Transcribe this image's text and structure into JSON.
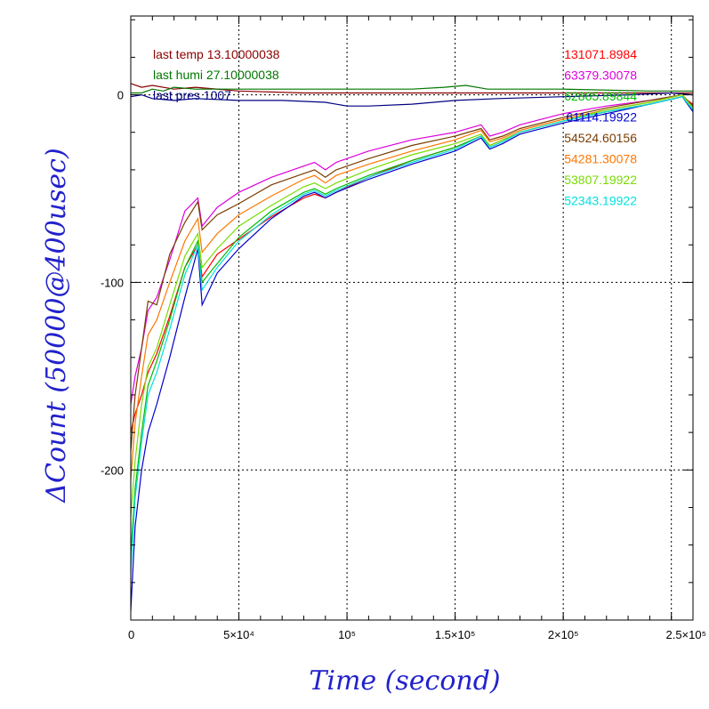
{
  "chart_data": {
    "type": "line",
    "xlabel": "Time (second)",
    "ylabel": "ΔCount (50000@400usec)",
    "xlim": [
      0,
      260000
    ],
    "ylim": [
      -280,
      42
    ],
    "x_ticks": [
      {
        "value": 0,
        "label": "0"
      },
      {
        "value": 50000,
        "label": "5×10⁴"
      },
      {
        "value": 100000,
        "label": "10⁵"
      },
      {
        "value": 150000,
        "label": "1.5×10⁵"
      },
      {
        "value": 200000,
        "label": "2×10⁵"
      },
      {
        "value": 250000,
        "label": "2.5×10⁵"
      }
    ],
    "y_ticks": [
      {
        "value": 0,
        "label": "0"
      },
      {
        "value": -100,
        "label": "-100"
      },
      {
        "value": -200,
        "label": "-200"
      }
    ],
    "grid": true,
    "env_labels": [
      {
        "text": "last temp 13.10000038",
        "color": "#8b0000"
      },
      {
        "text": "last humi 27.10000038",
        "color": "#007700"
      },
      {
        "text": "last pres 1007",
        "color": "#000080"
      }
    ],
    "legend_position": "top-right",
    "series": [
      {
        "name": "131071.8984",
        "color": "#ff0000",
        "x": [
          0,
          2000,
          5000,
          8000,
          12000,
          18000,
          25000,
          31000,
          33000,
          40000,
          50000,
          65000,
          80000,
          85000,
          90000,
          95000,
          110000,
          130000,
          150000,
          162000,
          166000,
          172000,
          180000,
          200000,
          220000,
          240000,
          255000,
          260000
        ],
        "values": [
          -180,
          -170,
          -160,
          -148,
          -138,
          -118,
          -92,
          -80,
          -97,
          -85,
          -77,
          -65,
          -55,
          -53,
          -55,
          -52,
          -44,
          -35,
          -28,
          -22,
          -27,
          -24,
          -20,
          -14,
          -9,
          -5,
          -1,
          -5
        ]
      },
      {
        "name": "63379.30078",
        "color": "#dd00dd",
        "x": [
          0,
          2000,
          5000,
          8000,
          12000,
          18000,
          25000,
          31000,
          33000,
          40000,
          50000,
          65000,
          80000,
          85000,
          90000,
          95000,
          110000,
          130000,
          150000,
          162000,
          166000,
          172000,
          180000,
          200000,
          220000,
          240000,
          255000,
          260000
        ],
        "values": [
          -165,
          -150,
          -135,
          -115,
          -108,
          -88,
          -62,
          -55,
          -70,
          -60,
          -52,
          -44,
          -38,
          -36,
          -40,
          -36,
          -30,
          -24,
          -20,
          -16,
          -22,
          -20,
          -16,
          -10,
          -6,
          -3,
          0,
          -6
        ]
      },
      {
        "name": "62805.89844",
        "color": "#00bb00",
        "x": [
          0,
          2000,
          5000,
          8000,
          12000,
          18000,
          25000,
          31000,
          33000,
          40000,
          50000,
          65000,
          80000,
          85000,
          90000,
          95000,
          110000,
          130000,
          150000,
          162000,
          166000,
          172000,
          180000,
          200000,
          220000,
          240000,
          255000,
          260000
        ],
        "values": [
          -245,
          -210,
          -180,
          -155,
          -142,
          -120,
          -92,
          -78,
          -100,
          -90,
          -76,
          -62,
          -52,
          -50,
          -53,
          -50,
          -43,
          -35,
          -28,
          -22,
          -28,
          -25,
          -20,
          -14,
          -9,
          -5,
          -1,
          -8
        ]
      },
      {
        "name": "61114.19922",
        "color": "#0000cc",
        "x": [
          0,
          2000,
          5000,
          8000,
          12000,
          18000,
          25000,
          31000,
          33000,
          40000,
          50000,
          65000,
          80000,
          85000,
          90000,
          95000,
          110000,
          130000,
          150000,
          162000,
          166000,
          172000,
          180000,
          200000,
          220000,
          240000,
          255000,
          260000
        ],
        "values": [
          -275,
          -230,
          -200,
          -180,
          -165,
          -140,
          -108,
          -82,
          -112,
          -95,
          -82,
          -66,
          -54,
          -52,
          -55,
          -52,
          -45,
          -37,
          -30,
          -23,
          -29,
          -26,
          -21,
          -15,
          -10,
          -5,
          -1,
          -9
        ]
      },
      {
        "name": "54524.60156",
        "color": "#7a3d00",
        "x": [
          0,
          2000,
          5000,
          8000,
          12000,
          18000,
          25000,
          31000,
          33000,
          40000,
          50000,
          65000,
          80000,
          85000,
          90000,
          95000,
          110000,
          130000,
          150000,
          162000,
          166000,
          172000,
          180000,
          200000,
          220000,
          240000,
          255000,
          260000
        ],
        "values": [
          -190,
          -160,
          -135,
          -110,
          -112,
          -85,
          -68,
          -57,
          -72,
          -64,
          -58,
          -48,
          -42,
          -40,
          -44,
          -40,
          -34,
          -27,
          -22,
          -18,
          -24,
          -22,
          -18,
          -12,
          -7,
          -3,
          0,
          -6
        ]
      },
      {
        "name": "54281.30078",
        "color": "#ff7700",
        "x": [
          0,
          2000,
          5000,
          8000,
          12000,
          18000,
          25000,
          31000,
          33000,
          40000,
          50000,
          65000,
          80000,
          85000,
          90000,
          95000,
          110000,
          130000,
          150000,
          162000,
          166000,
          172000,
          180000,
          200000,
          220000,
          240000,
          255000,
          260000
        ],
        "values": [
          -205,
          -175,
          -150,
          -128,
          -120,
          -100,
          -78,
          -66,
          -84,
          -74,
          -64,
          -54,
          -45,
          -43,
          -47,
          -43,
          -37,
          -30,
          -24,
          -19,
          -25,
          -23,
          -19,
          -13,
          -8,
          -4,
          0,
          -7
        ]
      },
      {
        "name": "53807.19922",
        "color": "#77dd00",
        "x": [
          0,
          2000,
          5000,
          8000,
          12000,
          18000,
          25000,
          31000,
          33000,
          40000,
          50000,
          65000,
          80000,
          85000,
          90000,
          95000,
          110000,
          130000,
          150000,
          162000,
          166000,
          172000,
          180000,
          200000,
          220000,
          240000,
          255000,
          260000
        ],
        "values": [
          -225,
          -195,
          -165,
          -145,
          -135,
          -112,
          -86,
          -74,
          -92,
          -82,
          -70,
          -59,
          -49,
          -47,
          -50,
          -47,
          -40,
          -32,
          -26,
          -21,
          -27,
          -24,
          -20,
          -14,
          -8,
          -4,
          0,
          -7
        ]
      },
      {
        "name": "52343.19922",
        "color": "#00e0e0",
        "x": [
          0,
          2000,
          5000,
          8000,
          12000,
          18000,
          25000,
          31000,
          33000,
          40000,
          50000,
          65000,
          80000,
          85000,
          90000,
          95000,
          110000,
          130000,
          150000,
          162000,
          166000,
          172000,
          180000,
          200000,
          220000,
          240000,
          255000,
          260000
        ],
        "values": [
          -255,
          -215,
          -185,
          -160,
          -148,
          -125,
          -96,
          -80,
          -104,
          -92,
          -78,
          -64,
          -53,
          -51,
          -54,
          -51,
          -44,
          -36,
          -29,
          -22,
          -28,
          -25,
          -20,
          -14,
          -9,
          -5,
          -1,
          -8
        ]
      }
    ],
    "env_series": [
      {
        "color": "#8b0000",
        "x": [
          0,
          5000,
          10000,
          20000,
          30000,
          50000,
          80000,
          100000,
          130000,
          160000,
          200000,
          240000,
          255000,
          260000
        ],
        "values": [
          6,
          4,
          5,
          3,
          4,
          2,
          1,
          1,
          1,
          1,
          1,
          1,
          1,
          1
        ]
      },
      {
        "color": "#007700",
        "x": [
          0,
          5000,
          10000,
          15000,
          20000,
          30000,
          50000,
          80000,
          100000,
          130000,
          145000,
          155000,
          165000,
          200000,
          240000,
          255000,
          260000
        ],
        "values": [
          1,
          1,
          3,
          2,
          4,
          3,
          3,
          3,
          3,
          3,
          4,
          5,
          3,
          3,
          2,
          2,
          2
        ]
      },
      {
        "color": "#000080",
        "x": [
          0,
          5000,
          10000,
          20000,
          30000,
          50000,
          70000,
          90000,
          100000,
          110000,
          130000,
          150000,
          170000,
          200000,
          230000,
          250000,
          260000
        ],
        "values": [
          -1,
          0,
          -2,
          -3,
          -2,
          -3,
          -3,
          -4,
          -6,
          -6,
          -5,
          -3,
          -2,
          -1,
          0,
          1,
          0
        ]
      }
    ]
  }
}
